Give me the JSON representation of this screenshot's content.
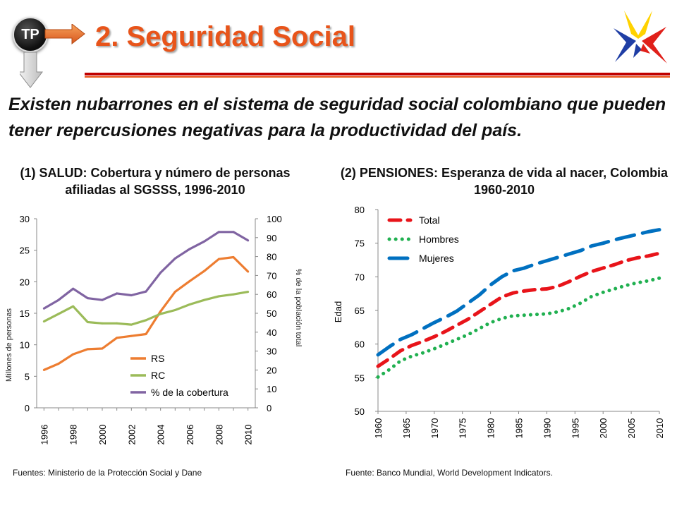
{
  "header": {
    "badge": "TP",
    "title": "2. Seguridad Social"
  },
  "intro": "Existen nubarrones en el sistema de seguridad social colombiano que pueden tener repercusiones negativas para la productividad del país.",
  "colors": {
    "title": "#e8541a",
    "rule": "#c00000",
    "rs": "#ed7d31",
    "rc": "#9bbb59",
    "cobertura": "#8064a2",
    "total": "#e8141a",
    "hombres": "#20b050",
    "mujeres": "#0070c0"
  },
  "chart_data": [
    {
      "type": "line",
      "title": "(1) SALUD: Cobertura y número de personas afiliadas al SGSSS, 1996-2010",
      "ylabel": "Millones de personas",
      "y2label": "% de la población total",
      "ylim": [
        0,
        30
      ],
      "y2lim": [
        0,
        100
      ],
      "yticks": [
        "0",
        "5",
        "10",
        "15",
        "20",
        "25",
        "30"
      ],
      "y2ticks": [
        "0",
        "10",
        "20",
        "30",
        "40",
        "50",
        "60",
        "70",
        "80",
        "90",
        "100"
      ],
      "xticks": [
        "1996",
        "1998",
        "2000",
        "2002",
        "2004",
        "2006",
        "2008",
        "2010"
      ],
      "x": [
        1996,
        1997,
        1998,
        1999,
        2000,
        2001,
        2002,
        2003,
        2004,
        2005,
        2006,
        2007,
        2008,
        2009,
        2010
      ],
      "legend_position": "bottom-right",
      "series": [
        {
          "name": "RS",
          "axis": "left",
          "values": [
            6.0,
            7.0,
            8.5,
            9.3,
            9.4,
            11.1,
            11.4,
            11.7,
            15.3,
            18.4,
            20.1,
            21.7,
            23.6,
            23.9,
            21.6
          ]
        },
        {
          "name": "RC",
          "axis": "left",
          "values": [
            13.7,
            14.9,
            16.1,
            13.6,
            13.4,
            13.4,
            13.2,
            13.9,
            14.9,
            15.5,
            16.4,
            17.1,
            17.7,
            18.0,
            18.4
          ]
        },
        {
          "name": "% de la cobertura",
          "axis": "right",
          "values": [
            52.5,
            57,
            63,
            58,
            57,
            60.5,
            59.5,
            61.5,
            71.5,
            79,
            84,
            88,
            93,
            93,
            88.5
          ]
        }
      ]
    },
    {
      "type": "line",
      "title": "(2) PENSIONES: Esperanza de vida al nacer, Colombia 1960-2010",
      "ylabel": "Edad",
      "ylim": [
        50,
        80
      ],
      "yticks": [
        "50",
        "55",
        "60",
        "65",
        "70",
        "75",
        "80"
      ],
      "xticks": [
        "1960",
        "1965",
        "1970",
        "1975",
        "1980",
        "1985",
        "1990",
        "1995",
        "2000",
        "2005",
        "2010"
      ],
      "x": [
        1960,
        1962,
        1964,
        1966,
        1968,
        1970,
        1972,
        1974,
        1976,
        1978,
        1980,
        1982,
        1984,
        1986,
        1988,
        1990,
        1992,
        1994,
        1996,
        1998,
        2000,
        2002,
        2004,
        2006,
        2008,
        2010
      ],
      "legend_position": "top-left",
      "series": [
        {
          "name": "Total",
          "values": [
            56.7,
            57.8,
            59.0,
            59.8,
            60.4,
            61.1,
            61.9,
            62.8,
            63.7,
            64.8,
            65.9,
            67.0,
            67.6,
            67.9,
            68.1,
            68.2,
            68.6,
            69.3,
            70.1,
            70.8,
            71.3,
            71.8,
            72.4,
            72.8,
            73.1,
            73.5
          ]
        },
        {
          "name": "Hombres",
          "values": [
            55.1,
            56.2,
            57.5,
            58.2,
            58.7,
            59.3,
            60.0,
            60.7,
            61.4,
            62.3,
            63.2,
            63.8,
            64.2,
            64.3,
            64.4,
            64.5,
            64.8,
            65.3,
            66.1,
            67.1,
            67.7,
            68.2,
            68.7,
            69.1,
            69.4,
            69.8
          ]
        },
        {
          "name": "Mujeres",
          "values": [
            58.4,
            59.6,
            60.7,
            61.4,
            62.3,
            63.2,
            64.0,
            64.9,
            66.1,
            67.3,
            68.8,
            70.0,
            70.9,
            71.3,
            71.9,
            72.4,
            72.9,
            73.4,
            73.9,
            74.6,
            75.0,
            75.5,
            75.9,
            76.3,
            76.7,
            77.0
          ]
        }
      ]
    }
  ],
  "sources": {
    "left": "Fuentes: Ministerio de la Protección Social y Dane",
    "right": "Fuente: Banco Mundial, World Development Indicators."
  }
}
